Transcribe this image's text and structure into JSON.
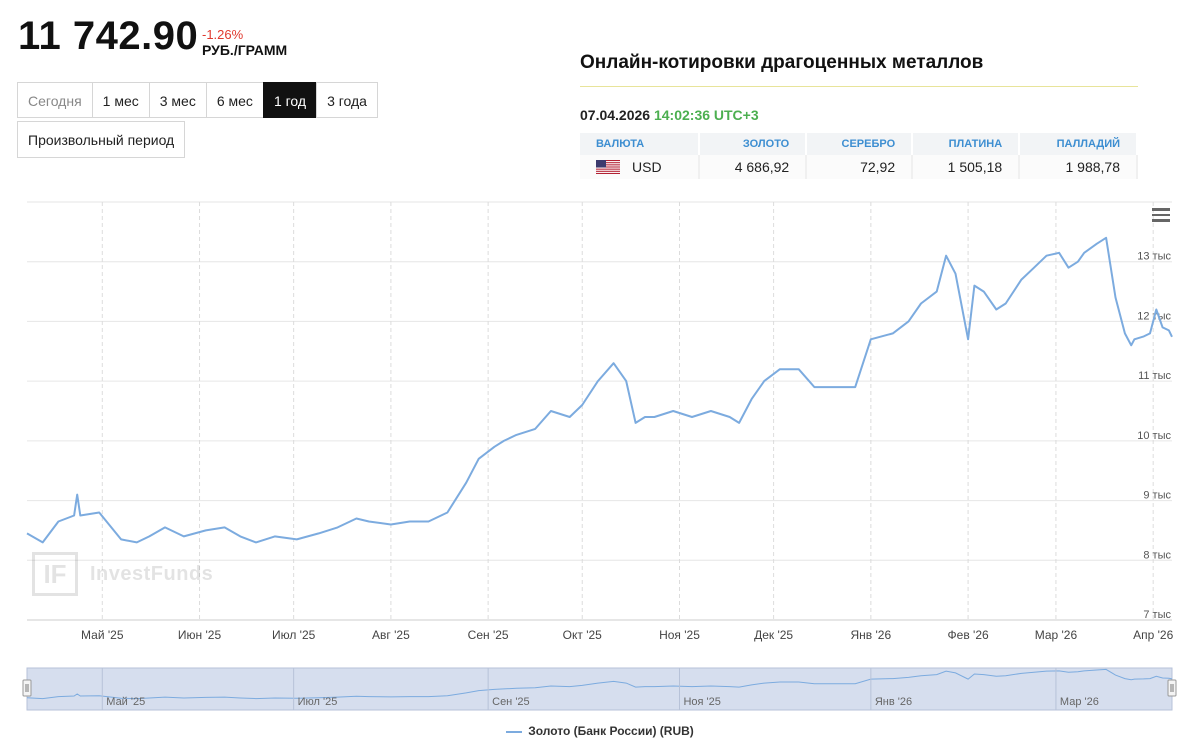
{
  "price": {
    "value": "11 742.90",
    "change": "-1.26%",
    "unit": "РУБ./ГРАММ"
  },
  "periods": [
    {
      "label": "Сегодня",
      "state": "disabled"
    },
    {
      "label": "1 мес",
      "state": "normal"
    },
    {
      "label": "3 мес",
      "state": "normal"
    },
    {
      "label": "6 мес",
      "state": "normal"
    },
    {
      "label": "1 год",
      "state": "active"
    },
    {
      "label": "3 года",
      "state": "normal"
    }
  ],
  "custom_period": "Произвольный период",
  "quotes": {
    "title": "Онлайн-котировки драгоценных металлов",
    "date": "07.04.2026",
    "time": "14:02:36 UTC+3",
    "headers": [
      "ВАЛЮТА",
      "ЗОЛОТО",
      "СЕРЕБРО",
      "ПЛАТИНА",
      "ПАЛЛАДИЙ"
    ],
    "row": {
      "flag_icon": "us-flag-icon",
      "currency": "USD",
      "gold": "4 686,92",
      "silver": "72,92",
      "platinum": "1 505,18",
      "palladium": "1 988,78"
    }
  },
  "watermark": {
    "logo": "IF",
    "text": "InvestFunds"
  },
  "chart_data": {
    "type": "line",
    "title": "",
    "series": [
      {
        "name": "Золото (Банк России) (RUB)",
        "color": "#7cabdf",
        "x": [
          "2025-04-07",
          "2025-04-12",
          "2025-04-17",
          "2025-04-22",
          "2025-04-23",
          "2025-04-24",
          "2025-04-30",
          "2025-05-07",
          "2025-05-12",
          "2025-05-16",
          "2025-05-21",
          "2025-05-27",
          "2025-06-03",
          "2025-06-09",
          "2025-06-14",
          "2025-06-19",
          "2025-06-25",
          "2025-07-02",
          "2025-07-09",
          "2025-07-15",
          "2025-07-21",
          "2025-07-25",
          "2025-08-01",
          "2025-08-07",
          "2025-08-13",
          "2025-08-19",
          "2025-08-25",
          "2025-08-29",
          "2025-09-03",
          "2025-09-06",
          "2025-09-10",
          "2025-09-16",
          "2025-09-21",
          "2025-09-27",
          "2025-10-01",
          "2025-10-06",
          "2025-10-11",
          "2025-10-15",
          "2025-10-18",
          "2025-10-21",
          "2025-10-24",
          "2025-10-30",
          "2025-11-05",
          "2025-11-11",
          "2025-11-17",
          "2025-11-20",
          "2025-11-24",
          "2025-11-28",
          "2025-12-03",
          "2025-12-09",
          "2025-12-14",
          "2025-12-18",
          "2025-12-22",
          "2025-12-27",
          "2026-01-01",
          "2026-01-08",
          "2026-01-13",
          "2026-01-17",
          "2026-01-22",
          "2026-01-25",
          "2026-01-28",
          "2026-02-01",
          "2026-02-03",
          "2026-02-06",
          "2026-02-10",
          "2026-02-13",
          "2026-02-18",
          "2026-02-22",
          "2026-02-26",
          "2026-03-02",
          "2026-03-05",
          "2026-03-08",
          "2026-03-10",
          "2026-03-14",
          "2026-03-17",
          "2026-03-20",
          "2026-03-23",
          "2026-03-25",
          "2026-03-26",
          "2026-03-29",
          "2026-03-31",
          "2026-04-02",
          "2026-04-04",
          "2026-04-06",
          "2026-04-07"
        ],
        "values": [
          8450,
          8300,
          8650,
          8750,
          9100,
          8750,
          8800,
          8350,
          8300,
          8400,
          8550,
          8400,
          8500,
          8550,
          8400,
          8300,
          8400,
          8350,
          8450,
          8550,
          8700,
          8650,
          8600,
          8650,
          8650,
          8800,
          9300,
          9700,
          9900,
          10000,
          10100,
          10200,
          10500,
          10400,
          10600,
          11000,
          11300,
          11000,
          10300,
          10400,
          10400,
          10500,
          10400,
          10500,
          10400,
          10300,
          10700,
          11000,
          11200,
          11200,
          10900,
          10900,
          10900,
          10900,
          11700,
          11800,
          12000,
          12300,
          12500,
          13100,
          12800,
          11700,
          12600,
          12500,
          12200,
          12300,
          12700,
          12900,
          13100,
          13150,
          12900,
          13000,
          13150,
          13300,
          13400,
          12400,
          11800,
          11600,
          11700,
          11750,
          11800,
          12200,
          11900,
          11850,
          11742
        ]
      }
    ],
    "x_ticks": [
      "Май '25",
      "Июн '25",
      "Июл '25",
      "Авг '25",
      "Сен '25",
      "Окт '25",
      "Ноя '25",
      "Дек '25",
      "Янв '26",
      "Фев '26",
      "Мар '26",
      "Апр '26"
    ],
    "y_ticks": [
      "7 тыс",
      "8 тыс",
      "9 тыс",
      "10 тыс",
      "11 тыс",
      "12 тыс",
      "13 тыс"
    ],
    "navigator_ticks": [
      "Май '25",
      "Июл '25",
      "Сен '25",
      "Ноя '25",
      "Янв '26",
      "Мар '26"
    ],
    "xlabel": "",
    "ylabel": "",
    "ylim": [
      7000,
      14000
    ],
    "xlim": [
      "2025-04-07",
      "2026-04-07"
    ],
    "grid": true,
    "legend_position": "bottom-center"
  }
}
